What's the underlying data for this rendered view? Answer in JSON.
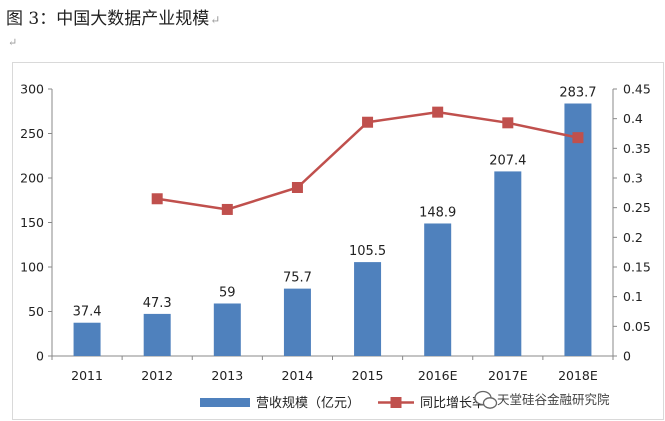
{
  "caption": {
    "title": "图 3：中国大数据产业规模",
    "return_mark": "↵",
    "para_mark": "↵"
  },
  "watermark": "天堂硅谷金融研究院",
  "colors": {
    "bar": "#4f81bd",
    "line": "#c0504d",
    "marker": "#c0504d"
  },
  "chart_data": {
    "type": "bar",
    "categories": [
      "2011",
      "2012",
      "2013",
      "2014",
      "2015",
      "2016E",
      "2017E",
      "2018E"
    ],
    "series": [
      {
        "name": "营收规模（亿元）",
        "type": "bar",
        "axis": "left",
        "values": [
          37.4,
          47.3,
          59,
          75.7,
          105.5,
          148.9,
          207.4,
          283.7
        ],
        "labels": [
          "37.4",
          "47.3",
          "59",
          "75.7",
          "105.5",
          "148.9",
          "207.4",
          "283.7"
        ]
      },
      {
        "name": "同比增长率",
        "type": "line",
        "axis": "right",
        "values": [
          null,
          0.265,
          0.247,
          0.284,
          0.394,
          0.411,
          0.393,
          0.368
        ]
      }
    ],
    "y_left": {
      "min": 0,
      "max": 300,
      "ticks": [
        "0",
        "50",
        "100",
        "150",
        "200",
        "250",
        "300"
      ]
    },
    "y_right": {
      "min": 0,
      "max": 0.45,
      "ticks": [
        "0",
        "0.05",
        "0.1",
        "0.15",
        "0.2",
        "0.25",
        "0.3",
        "0.35",
        "0.4",
        "0.45"
      ]
    },
    "grid": false,
    "legend_position": "bottom"
  }
}
